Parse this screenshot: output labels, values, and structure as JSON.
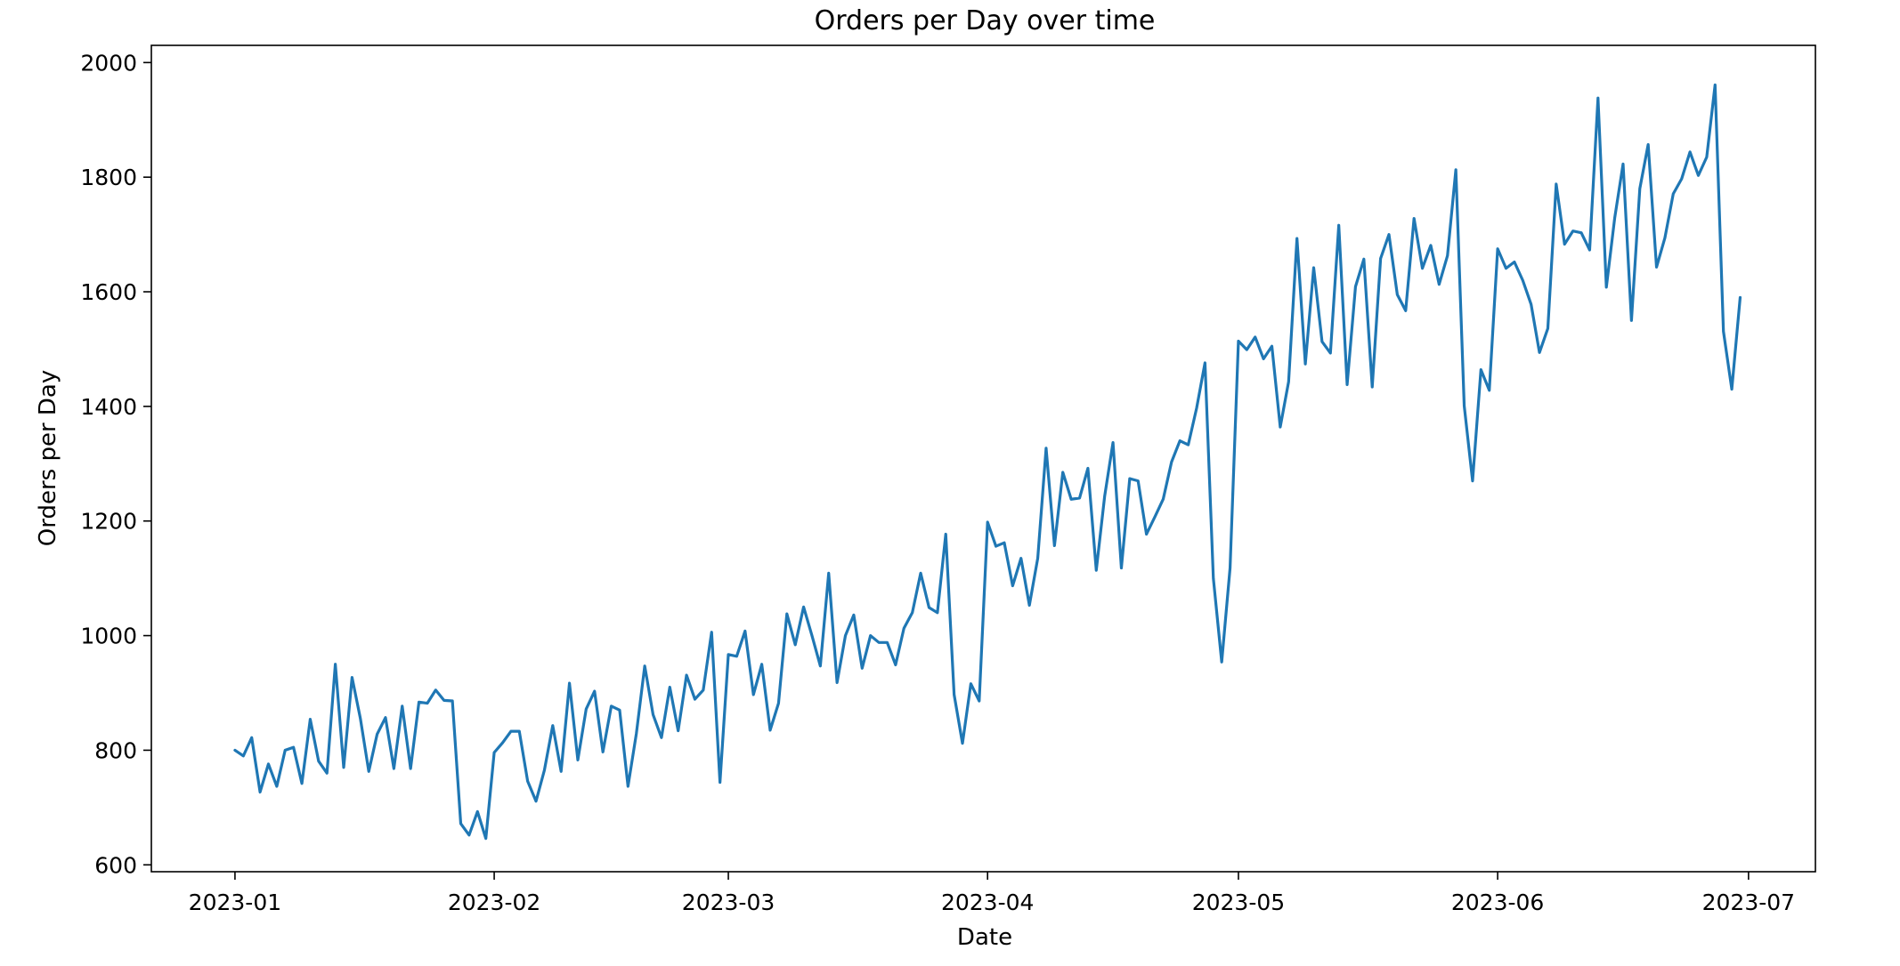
{
  "chart_data": {
    "type": "line",
    "title": "Orders per Day over time",
    "xlabel": "Date",
    "ylabel": "Orders per Day",
    "x_start": "2023-01-01",
    "x_end": "2023-06-30",
    "xlim": [
      "2022-12-22",
      "2023-07-09"
    ],
    "ylim": [
      588,
      2030
    ],
    "grid": false,
    "line_color": "#1f77b4",
    "x_ticks": [
      {
        "date": "2023-01-01",
        "label": "2023-01"
      },
      {
        "date": "2023-02-01",
        "label": "2023-02"
      },
      {
        "date": "2023-03-01",
        "label": "2023-03"
      },
      {
        "date": "2023-04-01",
        "label": "2023-04"
      },
      {
        "date": "2023-05-01",
        "label": "2023-05"
      },
      {
        "date": "2023-06-01",
        "label": "2023-06"
      },
      {
        "date": "2023-07-01",
        "label": "2023-07"
      }
    ],
    "y_ticks": [
      {
        "value": 600,
        "label": "600"
      },
      {
        "value": 800,
        "label": "800"
      },
      {
        "value": 1000,
        "label": "1000"
      },
      {
        "value": 1200,
        "label": "1200"
      },
      {
        "value": 1400,
        "label": "1400"
      },
      {
        "value": 1600,
        "label": "1600"
      },
      {
        "value": 1800,
        "label": "1800"
      },
      {
        "value": 2000,
        "label": "2000"
      }
    ],
    "series": [
      {
        "values": [
          800,
          790,
          822,
          727,
          776,
          737,
          800,
          805,
          742,
          854,
          781,
          760,
          950,
          770,
          927,
          855,
          763,
          828,
          857,
          768,
          877,
          768,
          884,
          882,
          905,
          887,
          886,
          672,
          652,
          693,
          646,
          796,
          813,
          833,
          833,
          746,
          711,
          765,
          843,
          763,
          917,
          783,
          872,
          903,
          797,
          877,
          870,
          737,
          829,
          947,
          862,
          822,
          910,
          834,
          931,
          889,
          905,
          1006,
          744,
          967,
          964,
          1008,
          897,
          950,
          835,
          882,
          1038,
          984,
          1050,
          1000,
          947,
          1109,
          918,
          1000,
          1036,
          943,
          1000,
          988,
          988,
          949,
          1013,
          1040,
          1109,
          1049,
          1040,
          1177,
          897,
          812,
          916,
          886,
          1198,
          1156,
          1162,
          1087,
          1135,
          1053,
          1135,
          1327,
          1157,
          1285,
          1238,
          1240,
          1292,
          1114,
          1243,
          1337,
          1118,
          1274,
          1270,
          1177,
          1207,
          1238,
          1303,
          1340,
          1333,
          1397,
          1476,
          1100,
          954,
          1118,
          1514,
          1499,
          1521,
          1483,
          1505,
          1364,
          1443,
          1693,
          1474,
          1642,
          1513,
          1493,
          1716,
          1438,
          1609,
          1657,
          1434,
          1658,
          1700,
          1595,
          1567,
          1728,
          1641,
          1681,
          1613,
          1663,
          1813,
          1401,
          1270,
          1464,
          1428,
          1675,
          1641,
          1652,
          1620,
          1578,
          1494,
          1536,
          1788,
          1683,
          1706,
          1703,
          1673,
          1938,
          1608,
          1729,
          1823,
          1550,
          1780,
          1857,
          1643,
          1694,
          1771,
          1797,
          1844,
          1803,
          1835,
          1961,
          1531,
          1430,
          1590
        ]
      }
    ]
  }
}
